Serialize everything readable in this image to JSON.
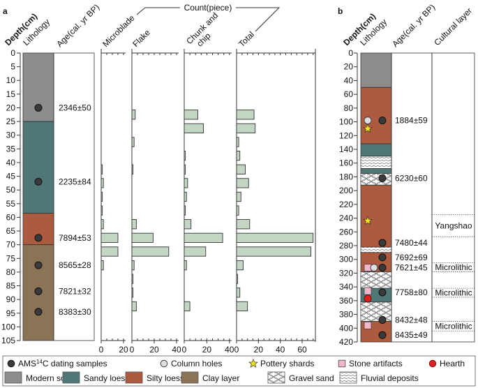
{
  "panel_a": {
    "label": "a",
    "headers": {
      "depth": "Depth(cm)",
      "lithology": "Lithology",
      "age": "Age(cal. yr BP)",
      "count_group": "Count(piece)"
    },
    "depth_ticks": [
      0,
      5,
      10,
      15,
      20,
      25,
      30,
      35,
      40,
      45,
      50,
      55,
      60,
      65,
      70,
      75,
      80,
      85,
      90,
      95,
      100,
      105
    ],
    "layers": [
      {
        "type": "modern_soil",
        "top": 0,
        "bottom": 25
      },
      {
        "type": "sandy_loess",
        "top": 25,
        "bottom": 58.5
      },
      {
        "type": "silty_loess",
        "top": 58.5,
        "bottom": 70
      },
      {
        "type": "clay_layer",
        "top": 70,
        "bottom": 105
      }
    ],
    "samples": [
      {
        "depth": 20,
        "age": "2346±50"
      },
      {
        "depth": 47,
        "age": "2235±84"
      },
      {
        "depth": 67.5,
        "age": "7894±53"
      },
      {
        "depth": 77.5,
        "age": "8565±28"
      },
      {
        "depth": 87,
        "age": "7821±32"
      },
      {
        "depth": 94.5,
        "age": "8383±30"
      }
    ]
  },
  "chart_data": {
    "type": "bar",
    "orientation": "horizontal",
    "title": "Count(piece)",
    "ylabel": "Depth(cm)",
    "ylim": [
      0,
      105
    ],
    "depth_bins": [
      22.5,
      27.5,
      32.5,
      37.5,
      42.5,
      47.5,
      52.5,
      57.5,
      62.5,
      67.5,
      72.5,
      77.5,
      82.5,
      87.5,
      92.5
    ],
    "series": [
      {
        "name": "Microblade",
        "xlim": [
          0,
          20
        ],
        "ticks": [
          "0",
          "20"
        ],
        "values": [
          0,
          0,
          0,
          0,
          1,
          2,
          1,
          1,
          2,
          15,
          15,
          2,
          0,
          0,
          0
        ]
      },
      {
        "name": "Flake",
        "xlim": [
          0,
          40
        ],
        "ticks": [
          "0",
          "20",
          "40"
        ],
        "values": [
          3,
          0,
          2,
          0,
          1,
          0,
          0,
          0,
          4,
          19,
          33,
          2,
          1,
          1,
          4
        ]
      },
      {
        "name": "Chunk and chip",
        "xlim": [
          0,
          40
        ],
        "ticks": [
          "0",
          "20",
          "40"
        ],
        "values": [
          12,
          17,
          0,
          1,
          1,
          3,
          2,
          1,
          6,
          34,
          19,
          2,
          0,
          0,
          5
        ]
      },
      {
        "name": "Total",
        "xlim": [
          0,
          72
        ],
        "ticks": [
          "0",
          "20",
          "40",
          "60"
        ],
        "values": [
          16,
          17,
          2,
          3,
          8,
          11,
          4,
          2,
          12,
          70,
          68,
          6,
          1,
          3,
          10
        ]
      }
    ]
  },
  "panel_b": {
    "label": "b",
    "headers": {
      "depth": "Depth(cm)",
      "lithology": "Lithology",
      "age": "Age(cal. yr BP)",
      "cultural": "Cultural layer"
    },
    "depth_ticks": [
      0,
      20,
      40,
      60,
      80,
      100,
      120,
      140,
      160,
      180,
      200,
      220,
      240,
      260,
      280,
      300,
      320,
      340,
      360,
      380,
      400,
      420
    ],
    "layers": [
      {
        "type": "modern_soil",
        "top": 0,
        "bottom": 50
      },
      {
        "type": "silty_loess",
        "top": 50,
        "bottom": 132
      },
      {
        "type": "sandy_loess",
        "top": 132,
        "bottom": 150
      },
      {
        "type": "fluvial_deposits",
        "top": 150,
        "bottom": 168
      },
      {
        "type": "sandy_loess",
        "top": 168,
        "bottom": 175
      },
      {
        "type": "gravel_sand",
        "top": 175,
        "bottom": 192
      },
      {
        "type": "silty_loess",
        "top": 192,
        "bottom": 282
      },
      {
        "type": "fluvial_deposits",
        "top": 282,
        "bottom": 290
      },
      {
        "type": "silty_loess",
        "top": 290,
        "bottom": 318
      },
      {
        "type": "gravel_sand",
        "top": 318,
        "bottom": 342
      },
      {
        "type": "sandy_loess",
        "top": 342,
        "bottom": 362
      },
      {
        "type": "gravel_sand",
        "top": 362,
        "bottom": 390
      },
      {
        "type": "silty_loess",
        "top": 390,
        "bottom": 420
      }
    ],
    "markers": [
      {
        "kind": "column_hole",
        "depth": 98,
        "col": 0
      },
      {
        "kind": "ams",
        "depth": 98,
        "col": 2
      },
      {
        "kind": "pottery",
        "depth": 110,
        "col": 0
      },
      {
        "kind": "ams",
        "depth": 182,
        "col": 2
      },
      {
        "kind": "pottery",
        "depth": 244,
        "col": 0
      },
      {
        "kind": "ams",
        "depth": 276,
        "col": 2
      },
      {
        "kind": "ams",
        "depth": 297,
        "col": 2
      },
      {
        "kind": "stone",
        "depth": 312,
        "col": 0
      },
      {
        "kind": "column_hole",
        "depth": 312,
        "col": 1
      },
      {
        "kind": "ams",
        "depth": 312,
        "col": 2
      },
      {
        "kind": "stone",
        "depth": 346,
        "col": 0
      },
      {
        "kind": "ams",
        "depth": 348,
        "col": 2
      },
      {
        "kind": "hearth",
        "depth": 357,
        "col": 0
      },
      {
        "kind": "ams",
        "depth": 388,
        "col": 2
      },
      {
        "kind": "stone",
        "depth": 396,
        "col": 0
      },
      {
        "kind": "ams",
        "depth": 410,
        "col": 2
      }
    ],
    "ages": [
      {
        "depth": 98,
        "age": "1884±59"
      },
      {
        "depth": 182,
        "age": "6230±60"
      },
      {
        "depth": 276,
        "age": "7480±44"
      },
      {
        "depth": 297,
        "age": "7692±69"
      },
      {
        "depth": 312,
        "age": "7621±45"
      },
      {
        "depth": 348,
        "age": "7758±80"
      },
      {
        "depth": 388,
        "age": "8432±48"
      },
      {
        "depth": 410,
        "age": "8435±49"
      }
    ],
    "cultural_layers": [
      {
        "name": "Yangshao",
        "top": 235,
        "bottom": 267
      },
      {
        "name": "Microlithic",
        "top": 305,
        "bottom": 318
      },
      {
        "name": "Microlithic",
        "top": 342,
        "bottom": 355
      },
      {
        "name": "Microlithic",
        "top": 390,
        "bottom": 404
      }
    ]
  },
  "legend": {
    "symbols": [
      {
        "kind": "ams",
        "label_pre": "AMS",
        "label_sup": "14",
        "label_post": "C dating samples"
      },
      {
        "kind": "column_hole",
        "label": "Column holes"
      },
      {
        "kind": "pottery",
        "label": "Pottery shards"
      },
      {
        "kind": "stone",
        "label": "Stone artifacts"
      },
      {
        "kind": "hearth",
        "label": "Hearth"
      }
    ],
    "lithologies": [
      {
        "type": "modern_soil",
        "label": "Modern soil"
      },
      {
        "type": "sandy_loess",
        "label": "Sandy loess"
      },
      {
        "type": "silty_loess",
        "label": "Silty loess"
      },
      {
        "type": "clay_layer",
        "label": "Clay layer"
      },
      {
        "type": "gravel_sand",
        "label": "Gravel sand"
      },
      {
        "type": "fluvial_deposits",
        "label": "Fluvial deposits"
      }
    ]
  },
  "colors": {
    "modern_soil": "#8d8d8d",
    "sandy_loess": "#4f7775",
    "silty_loess": "#ad5b3e",
    "clay_layer": "#8a7455",
    "bar_fill": "#c3d5c3",
    "ams": "#3a3a3a",
    "column_hole": "#dedede",
    "pottery": "#f5e31a",
    "stone": "#f3b6cc",
    "hearth": "#e02020"
  }
}
